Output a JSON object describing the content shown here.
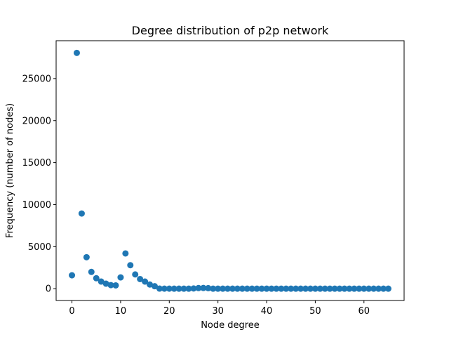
{
  "chart_data": {
    "type": "scatter",
    "title": "Degree distribution of p2p network",
    "xlabel": "Node degree",
    "ylabel": "Frequency (number of nodes)",
    "xlim": [
      -3.25,
      68.25
    ],
    "ylim": [
      -1400,
      29500
    ],
    "xticks": [
      0,
      10,
      20,
      30,
      40,
      50,
      60
    ],
    "yticks": [
      0,
      5000,
      10000,
      15000,
      20000,
      25000
    ],
    "marker_color": "#1f77b4",
    "grid": false,
    "x": [
      0,
      1,
      2,
      3,
      4,
      5,
      6,
      7,
      8,
      9,
      10,
      11,
      12,
      13,
      14,
      15,
      16,
      17,
      18,
      19,
      20,
      21,
      22,
      23,
      24,
      25,
      26,
      27,
      28,
      29,
      30,
      31,
      32,
      33,
      34,
      35,
      36,
      37,
      38,
      39,
      40,
      41,
      42,
      43,
      44,
      45,
      46,
      47,
      48,
      49,
      50,
      51,
      52,
      53,
      54,
      55,
      56,
      57,
      58,
      59,
      60,
      61,
      62,
      63,
      64,
      65
    ],
    "y": [
      1600,
      28050,
      8950,
      3750,
      2000,
      1250,
      850,
      600,
      430,
      400,
      1350,
      4200,
      2800,
      1700,
      1150,
      850,
      500,
      300,
      15,
      10,
      10,
      8,
      8,
      6,
      6,
      30,
      80,
      90,
      70,
      6,
      5,
      5,
      5,
      5,
      5,
      5,
      5,
      5,
      5,
      5,
      5,
      5,
      5,
      5,
      5,
      5,
      5,
      5,
      5,
      5,
      5,
      5,
      5,
      5,
      5,
      5,
      5,
      5,
      5,
      5,
      5,
      5,
      5,
      5,
      5,
      5
    ]
  }
}
